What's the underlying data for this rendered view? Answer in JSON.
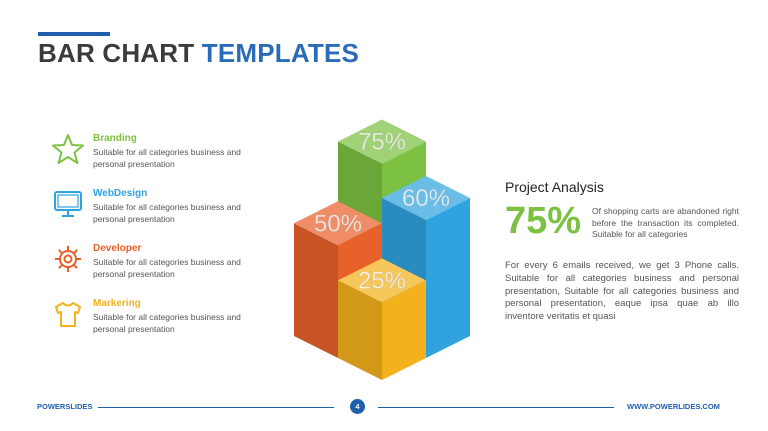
{
  "title": {
    "part1": "BAR CHART",
    "part2": "TEMPLATES"
  },
  "features": [
    {
      "title": "Branding",
      "desc": "Suitable for all categories business and personal presentation",
      "color": "#7cc142",
      "icon": "star-icon"
    },
    {
      "title": "WebDesign",
      "desc": "Suitable for all categories business and personal presentation",
      "color": "#2fa3de",
      "icon": "monitor-icon"
    },
    {
      "title": "Developer",
      "desc": "Suitable for all categories business and personal presentation",
      "color": "#e8602a",
      "icon": "gear-icon"
    },
    {
      "title": "Markering",
      "desc": "Suitable for all categories business and personal presentation",
      "color": "#f3b21b",
      "icon": "shirt-icon"
    }
  ],
  "analysis": {
    "title": "Project Analysis",
    "big_value": "75%",
    "small_text": "Of shopping carts are abandoned right before the transaction its completed. Suitable for all categories",
    "paragraph": "For every 6 emails received, we get 3 Phone calls. Suitable for all categories business and personal presentation, Suitable for all categories business and personal presentation, eaque ipsa quae ab illo inventore veritatis et quasi"
  },
  "footer": {
    "left": "POWERSLIDES",
    "page": "4",
    "right": "WWW.POWERLIDES.COM"
  },
  "colors": {
    "green": "#7cc142",
    "blue": "#2fa3de",
    "orange": "#e8602a",
    "yellow": "#f3b21b",
    "accent": "#1f5fad"
  },
  "chart_data": {
    "type": "bar",
    "categories": [
      "Orange",
      "Green",
      "Blue",
      "Yellow"
    ],
    "values": [
      50,
      75,
      60,
      25
    ],
    "labels": [
      "50%",
      "75%",
      "60%",
      "25%"
    ],
    "colors": [
      "#e8602a",
      "#7cc142",
      "#2fa3de",
      "#f3b21b"
    ],
    "ylim": [
      0,
      100
    ],
    "style": "3d-isometric"
  }
}
